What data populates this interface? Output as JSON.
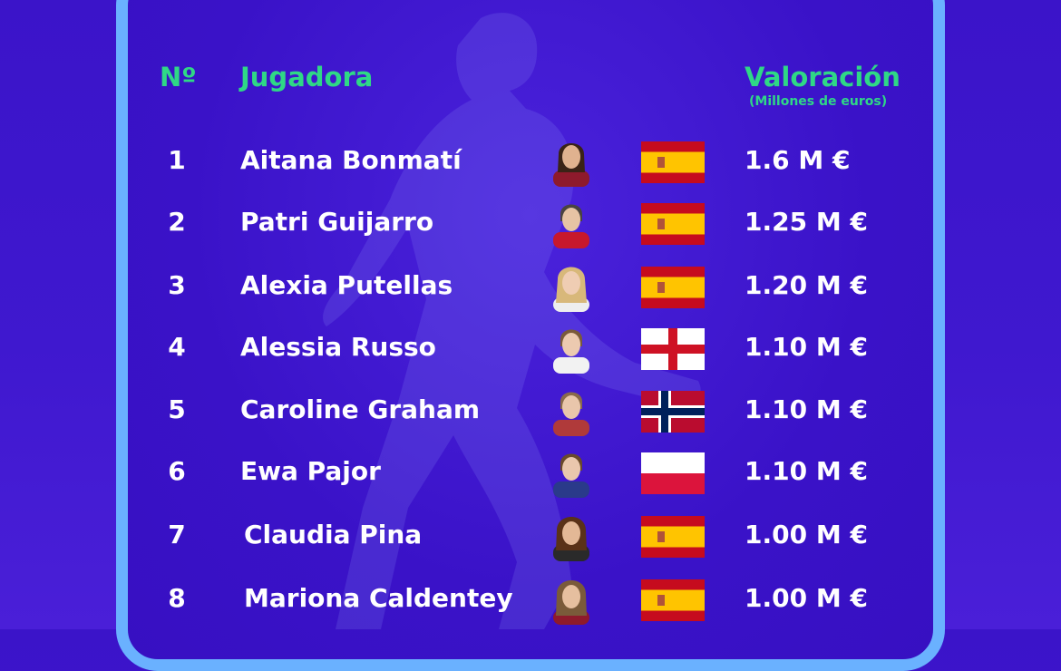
{
  "header": {
    "number": "Nº",
    "player": "Jugadora",
    "value": "Valoración",
    "value_unit": "(Millones de euros)"
  },
  "colors": {
    "background": "#3b14c9",
    "frame": "#6ab1ff",
    "header_text": "#2fd886",
    "row_text": "#ffffff"
  },
  "rows": [
    {
      "rank": "1",
      "name": "Aitana Bonmatí",
      "flag": "spain-flag",
      "value": "1.6 M €"
    },
    {
      "rank": "2",
      "name": "Patri Guijarro",
      "flag": "spain-flag",
      "value": "1.25 M €"
    },
    {
      "rank": "3",
      "name": "Alexia Putellas",
      "flag": "spain-flag",
      "value": "1.20 M €"
    },
    {
      "rank": "4",
      "name": "Alessia Russo",
      "flag": "england-flag",
      "value": "1.10 M €"
    },
    {
      "rank": "5",
      "name": "Caroline Graham",
      "flag": "norway-flag",
      "value": "1.10 M €"
    },
    {
      "rank": "6",
      "name": "Ewa Pajor",
      "flag": "poland-flag",
      "value": "1.10 M €"
    },
    {
      "rank": "7",
      "name": "Claudia Pina",
      "flag": "spain-flag",
      "value": "1.00 M €"
    },
    {
      "rank": "8",
      "name": "Mariona Caldentey",
      "flag": "spain-flag",
      "value": "1.00 M €"
    }
  ]
}
